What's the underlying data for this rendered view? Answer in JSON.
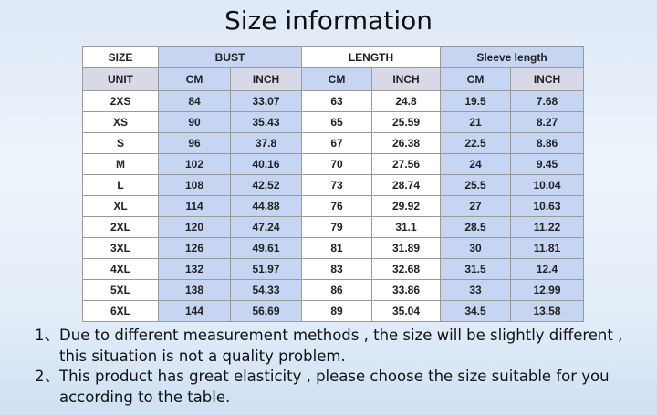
{
  "header": {
    "title": "Size information"
  },
  "table": {
    "groups": [
      "SIZE",
      "BUST",
      "LENGTH",
      "Sleeve length"
    ],
    "units": [
      "UNIT",
      "CM",
      "INCH",
      "CM",
      "INCH",
      "CM",
      "INCH"
    ],
    "rows": [
      [
        "2XS",
        "84",
        "33.07",
        "63",
        "24.8",
        "19.5",
        "7.68"
      ],
      [
        "XS",
        "90",
        "35.43",
        "65",
        "25.59",
        "21",
        "8.27"
      ],
      [
        "S",
        "96",
        "37.8",
        "67",
        "26.38",
        "22.5",
        "8.86"
      ],
      [
        "M",
        "102",
        "40.16",
        "70",
        "27.56",
        "24",
        "9.45"
      ],
      [
        "L",
        "108",
        "42.52",
        "73",
        "28.74",
        "25.5",
        "10.04"
      ],
      [
        "XL",
        "114",
        "44.88",
        "76",
        "29.92",
        "27",
        "10.63"
      ],
      [
        "2XL",
        "120",
        "47.24",
        "79",
        "31.1",
        "28.5",
        "11.22"
      ],
      [
        "3XL",
        "126",
        "49.61",
        "81",
        "31.89",
        "30",
        "11.81"
      ],
      [
        "4XL",
        "132",
        "51.97",
        "83",
        "32.68",
        "31.5",
        "12.4"
      ],
      [
        "5XL",
        "138",
        "54.33",
        "86",
        "33.86",
        "33",
        "12.99"
      ],
      [
        "6XL",
        "144",
        "56.69",
        "89",
        "35.04",
        "34.5",
        "13.58"
      ]
    ]
  },
  "notes": [
    {
      "marker": "1、",
      "lines": [
        "Due to different measurement methods , the size will be slightly different ,",
        "this situation is not a quality problem."
      ]
    },
    {
      "marker": "2、",
      "lines": [
        "This product has great elasticity , please choose the size suitable for you",
        "according to the table."
      ]
    }
  ]
}
